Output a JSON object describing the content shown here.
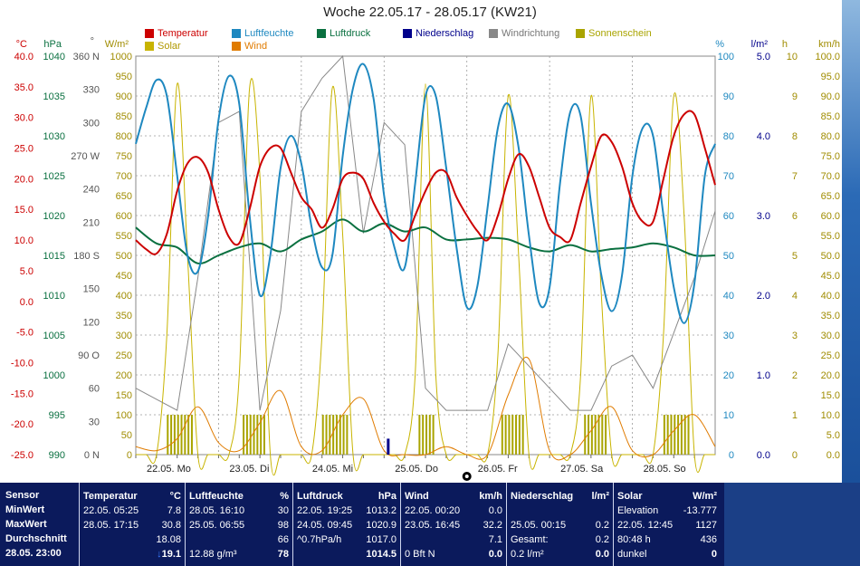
{
  "title": "Woche 22.05.17 - 28.05.17 (KW21)",
  "legend": [
    {
      "label": "Temperatur",
      "color": "#cc0000"
    },
    {
      "label": "Luftfeuchte",
      "color": "#1e88c0"
    },
    {
      "label": "Luftdruck",
      "color": "#0a7040"
    },
    {
      "label": "Niederschlag",
      "color": "#00008b"
    },
    {
      "label": "Windrichtung",
      "color": "#888888"
    },
    {
      "label": "Sonnenschein",
      "color": "#a9a400"
    },
    {
      "label": "Solar",
      "color": "#c8b400"
    },
    {
      "label": "Wind",
      "color": "#e07b00"
    }
  ],
  "axes": {
    "temp": {
      "unit": "°C",
      "labels": [
        "40.0",
        "35.0",
        "30.0",
        "25.0",
        "20.0",
        "15.0",
        "10.0",
        "5.0",
        "0.0",
        "-5.0",
        "-10.0",
        "-15.0",
        "-20.0",
        "-25.0"
      ],
      "color": "#cc0000"
    },
    "pressure": {
      "unit": "hPa",
      "labels": [
        "1040",
        "1035",
        "1030",
        "1025",
        "1020",
        "1015",
        "1010",
        "1005",
        "1000",
        "995",
        "990"
      ],
      "color": "#0a7040"
    },
    "winddir": {
      "unit": "°",
      "labels": [
        "360 N",
        "330",
        "300",
        "270 W",
        "240",
        "210",
        "180 S",
        "150",
        "120",
        "90 O",
        "60",
        "30",
        "0 N"
      ],
      "color": "#555555"
    },
    "solar": {
      "unit": "W/m²",
      "labels": [
        "1000",
        "950",
        "900",
        "850",
        "800",
        "750",
        "700",
        "650",
        "600",
        "550",
        "500",
        "450",
        "400",
        "350",
        "300",
        "250",
        "200",
        "150",
        "100",
        "50",
        "0"
      ],
      "color": "#a08c00"
    },
    "humidity": {
      "unit": "%",
      "labels": [
        "100",
        "90",
        "80",
        "70",
        "60",
        "50",
        "40",
        "30",
        "20",
        "10",
        "0"
      ],
      "color": "#1e88c0"
    },
    "rain": {
      "unit": "l/m²",
      "labels": [
        "5.0",
        "4.0",
        "3.0",
        "2.0",
        "1.0",
        "0.0"
      ],
      "color": "#00008b"
    },
    "sun": {
      "unit": "h",
      "labels": [
        "10",
        "9",
        "8",
        "7",
        "6",
        "5",
        "4",
        "3",
        "2",
        "1",
        "0"
      ],
      "color": "#a08c00"
    },
    "wind": {
      "unit": "km/h",
      "labels": [
        "100.0",
        "95.0",
        "90.0",
        "85.0",
        "80.0",
        "75.0",
        "70.0",
        "65.0",
        "60.0",
        "55.0",
        "50.0",
        "45.0",
        "40.0",
        "35.0",
        "30.0",
        "25.0",
        "20.0",
        "15.0",
        "10.0",
        "5.0",
        "0.0"
      ],
      "color": "#a08c00"
    }
  },
  "days": [
    "22.05.  Mo",
    "23.05.  Di",
    "24.05.  Mi",
    "25.05.  Do",
    "26.05.  Fr",
    "27.05.  Sa",
    "28.05.  So"
  ],
  "chart_data": {
    "type": "line",
    "title": "Woche 22.05.17 - 28.05.17 (KW21)",
    "x_unit": "Tage (22.05. - 28.05.)",
    "series": [
      {
        "name": "Temperatur",
        "unit": "°C",
        "x": [
          0,
          0.125,
          0.25,
          0.375,
          0.5,
          0.625,
          0.75,
          0.875,
          1,
          1.125,
          1.25,
          1.375,
          1.5,
          1.625,
          1.75,
          1.875,
          2,
          2.125,
          2.25,
          2.375,
          2.5,
          2.625,
          2.75,
          2.875,
          3,
          3.125,
          3.25,
          3.375,
          3.5,
          3.625,
          3.75,
          3.875,
          4,
          4.125,
          4.25,
          4.375,
          4.5,
          4.625,
          4.75,
          4.875,
          5,
          5.125,
          5.25,
          5.375,
          5.5,
          5.625,
          5.75,
          5.875,
          6,
          6.125,
          6.25,
          6.375,
          6.5,
          6.625,
          6.75,
          6.875,
          7
        ],
        "values": [
          10,
          8.5,
          7.8,
          11,
          18,
          22.5,
          23.5,
          21,
          15,
          10.5,
          9.5,
          15,
          22,
          25,
          25,
          21,
          17,
          15,
          12,
          15,
          20,
          21,
          20,
          16,
          13,
          11,
          10,
          14,
          18,
          21,
          21,
          17,
          14,
          11.5,
          10,
          14,
          20,
          24,
          22,
          17,
          12,
          10.5,
          10,
          16,
          22,
          27,
          26,
          22,
          16,
          13,
          13,
          20,
          27,
          30.5,
          30.5,
          25,
          19
        ]
      },
      {
        "name": "Luftfeuchte",
        "unit": "%",
        "x": [
          0,
          0.125,
          0.25,
          0.375,
          0.5,
          0.625,
          0.75,
          0.875,
          1,
          1.125,
          1.25,
          1.375,
          1.5,
          1.625,
          1.75,
          1.875,
          2,
          2.125,
          2.25,
          2.375,
          2.5,
          2.625,
          2.75,
          2.875,
          3,
          3.125,
          3.25,
          3.375,
          3.5,
          3.625,
          3.75,
          3.875,
          4,
          4.125,
          4.25,
          4.375,
          4.5,
          4.625,
          4.75,
          4.875,
          5,
          5.125,
          5.25,
          5.375,
          5.5,
          5.625,
          5.75,
          5.875,
          6,
          6.125,
          6.25,
          6.375,
          6.5,
          6.625,
          6.75,
          6.875,
          7
        ],
        "values": [
          78,
          87,
          94,
          90,
          70,
          50,
          46,
          60,
          84,
          95,
          88,
          60,
          40,
          50,
          72,
          80,
          73,
          57,
          47,
          50,
          75,
          92,
          98,
          89,
          65,
          52,
          47,
          68,
          90,
          90,
          72,
          52,
          37,
          42,
          62,
          82,
          88,
          77,
          55,
          38,
          42,
          68,
          86,
          85,
          63,
          45,
          36,
          45,
          70,
          82,
          80,
          60,
          42,
          33,
          43,
          70,
          78
        ]
      },
      {
        "name": "Luftdruck",
        "unit": "hPa",
        "x": [
          0,
          0.25,
          0.5,
          0.75,
          1,
          1.25,
          1.5,
          1.75,
          2,
          2.25,
          2.5,
          2.75,
          3,
          3.25,
          3.5,
          3.75,
          4,
          4.25,
          4.5,
          4.75,
          5,
          5.25,
          5.5,
          5.75,
          6,
          6.25,
          6.5,
          6.75,
          7
        ],
        "values": [
          1018.5,
          1016.5,
          1016,
          1014,
          1015,
          1016,
          1016.5,
          1015.5,
          1017,
          1018,
          1019.5,
          1018,
          1019,
          1018,
          1018.5,
          1017,
          1017,
          1017.2,
          1017,
          1016,
          1015.5,
          1016.3,
          1015.5,
          1015.8,
          1016,
          1016.5,
          1016,
          1015,
          1015
        ]
      },
      {
        "name": "Windrichtung",
        "unit": "°",
        "x": [
          0,
          0.25,
          0.5,
          0.75,
          1,
          1.25,
          1.5,
          1.75,
          2,
          2.25,
          2.5,
          2.75,
          3,
          3.25,
          3.5,
          3.75,
          4,
          4.25,
          4.5,
          4.75,
          5,
          5.25,
          5.5,
          5.75,
          6,
          6.25,
          6.5,
          6.75,
          7
        ],
        "values": [
          60,
          50,
          40,
          160,
          300,
          310,
          40,
          130,
          310,
          340,
          360,
          200,
          300,
          280,
          60,
          40,
          40,
          40,
          100,
          80,
          60,
          40,
          40,
          80,
          90,
          60,
          110,
          160,
          220
        ]
      },
      {
        "name": "Solar",
        "unit": "W/m²",
        "x": [
          0,
          0.125,
          0.25,
          0.375,
          0.5,
          0.625,
          0.75,
          0.875,
          1,
          1.125,
          1.25,
          1.375,
          1.5,
          1.625,
          1.75,
          1.875,
          2,
          2.125,
          2.25,
          2.375,
          2.5,
          2.625,
          2.75,
          2.875,
          3,
          3.125,
          3.25,
          3.375,
          3.5,
          3.625,
          3.75,
          3.875,
          4,
          4.125,
          4.25,
          4.375,
          4.5,
          4.625,
          4.75,
          4.875,
          5,
          5.125,
          5.25,
          5.375,
          5.5,
          5.625,
          5.75,
          5.875,
          6,
          6.125,
          6.25,
          6.375,
          6.5,
          6.625,
          6.75,
          6.875,
          7
        ],
        "values": [
          0,
          0,
          0,
          300,
          930,
          500,
          0,
          0,
          0,
          0,
          200,
          920,
          700,
          0,
          0,
          0,
          0,
          0,
          300,
          920,
          550,
          0,
          0,
          0,
          0,
          0,
          0,
          200,
          930,
          200,
          0,
          0,
          0,
          0,
          0,
          250,
          900,
          500,
          0,
          0,
          0,
          0,
          0,
          200,
          900,
          400,
          0,
          0,
          0,
          0,
          0,
          300,
          900,
          600,
          0,
          0,
          0
        ]
      },
      {
        "name": "Wind",
        "unit": "km/h",
        "x": [
          0,
          0.25,
          0.5,
          0.75,
          1,
          1.25,
          1.5,
          1.75,
          2,
          2.25,
          2.5,
          2.75,
          3,
          3.25,
          3.5,
          3.75,
          4,
          4.25,
          4.5,
          4.75,
          5,
          5.25,
          5.5,
          5.75,
          6,
          6.25,
          6.5,
          6.75,
          7
        ],
        "values": [
          2,
          1,
          4,
          12,
          3,
          1,
          8,
          16,
          2,
          1,
          10,
          14,
          1,
          0,
          0,
          2,
          0,
          0,
          15,
          24,
          1,
          0,
          6,
          12,
          1,
          0,
          6,
          10,
          2
        ]
      },
      {
        "name": "Niederschlag",
        "unit": "l/m²",
        "x": [
          3.05
        ],
        "values": [
          0.2
        ]
      }
    ],
    "ylim": {
      "temp": [
        -25,
        40
      ],
      "pressure": [
        990,
        1040
      ],
      "humidity": [
        0,
        100
      ],
      "solar": [
        0,
        1000
      ],
      "winddir": [
        0,
        360
      ],
      "rain": [
        0,
        5
      ],
      "sun": [
        0,
        10
      ],
      "wind": [
        0,
        100
      ]
    },
    "grid": true,
    "legend_position": "top"
  },
  "stats": {
    "sensor": {
      "header": "Sensor",
      "min": "MinWert",
      "max": "MaxWert",
      "avg": "Durchschnitt",
      "current": "28.05. 23:00"
    },
    "temperature": {
      "header": "Temperatur",
      "unit": "°C",
      "min_time": "22.05.  05:25",
      "min": "7.8",
      "max_time": "28.05.  17:15",
      "max": "30.8",
      "avg": "18.08",
      "current": "19.1",
      "trend_arrow": "↓"
    },
    "humidity": {
      "header": "Luftfeuchte",
      "unit": "%",
      "min_time": "28.05.  16:10",
      "min": "30",
      "max_time": "25.05.  06:55",
      "max": "98",
      "avg": "66",
      "abs": "12.88 g/m³",
      "current": "78"
    },
    "pressure": {
      "header": "Luftdruck",
      "unit": "hPa",
      "min_time": "22.05.  19:25",
      "min": "1013.2",
      "max_time": "24.05.  09:45",
      "max": "1020.9",
      "trend": "^0.7hPa/h",
      "avg": "1017.0",
      "current": "1014.5"
    },
    "wind": {
      "header": "Wind",
      "unit": "km/h",
      "min_time": "22.05.  00:20",
      "min": "0.0",
      "max_time": "23.05.  16:45",
      "max": "32.2",
      "avg": "7.1",
      "bft": "0 Bft N",
      "current": "0.0"
    },
    "rain": {
      "header": "Niederschlag",
      "unit": "l/m²",
      "max_time": "25.05.  00:15",
      "max": "0.2",
      "total_label": "Gesamt:",
      "total": "0.2",
      "current_label": "0.2 l/m²",
      "current": "0.0"
    },
    "solar": {
      "header": "Solar",
      "unit": "W/m²",
      "elev_label": "Elevation",
      "elev": "-13.777",
      "max_time": "22.05.  12:45",
      "max": "1127",
      "sun_hours": "80:48 h",
      "sun_val": "436",
      "state": "dunkel",
      "current": "0"
    }
  }
}
